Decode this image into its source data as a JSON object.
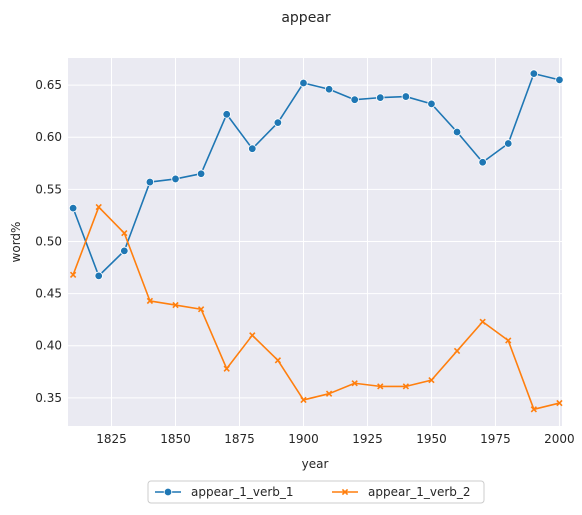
{
  "chart_data": {
    "type": "line",
    "title": "appear",
    "xlabel": "year",
    "ylabel": "word%",
    "x": [
      1810,
      1820,
      1830,
      1840,
      1850,
      1860,
      1870,
      1880,
      1890,
      1900,
      1910,
      1920,
      1930,
      1940,
      1950,
      1960,
      1970,
      1980,
      1990,
      2000
    ],
    "xlim": [
      1808,
      2001
    ],
    "ylim": [
      0.323,
      0.676
    ],
    "xticks": [
      1825,
      1850,
      1875,
      1900,
      1925,
      1950,
      1975,
      2000
    ],
    "yticks": [
      0.35,
      0.4,
      0.45,
      0.5,
      0.55,
      0.6,
      0.65
    ],
    "ytick_labels": [
      "0.35",
      "0.40",
      "0.45",
      "0.50",
      "0.55",
      "0.60",
      "0.65"
    ],
    "grid": true,
    "legend_position": "bottom-center",
    "series": [
      {
        "name": "appear_1_verb_1",
        "color": "#1f77b4",
        "marker": "circle",
        "values": [
          0.532,
          0.467,
          0.491,
          0.557,
          0.56,
          0.565,
          0.622,
          0.589,
          0.614,
          0.652,
          0.646,
          0.636,
          0.638,
          0.639,
          0.632,
          0.605,
          0.576,
          0.594,
          0.661,
          0.655
        ]
      },
      {
        "name": "appear_1_verb_2",
        "color": "#ff7f0e",
        "marker": "x",
        "values": [
          0.468,
          0.533,
          0.508,
          0.443,
          0.439,
          0.435,
          0.378,
          0.41,
          0.386,
          0.348,
          0.354,
          0.364,
          0.361,
          0.361,
          0.367,
          0.395,
          0.423,
          0.405,
          0.339,
          0.345
        ]
      }
    ]
  },
  "style": {
    "plot_background": "#eaeaf2",
    "grid_color": "#ffffff"
  }
}
